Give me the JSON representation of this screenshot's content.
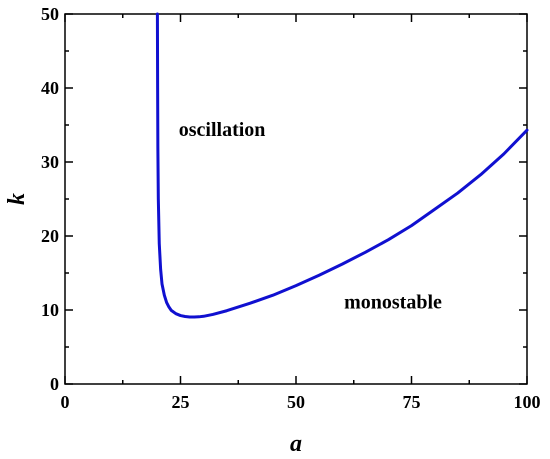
{
  "chart_data": {
    "type": "line",
    "xlabel": "a",
    "ylabel": "k",
    "xlim": [
      0,
      100
    ],
    "ylim": [
      0,
      50
    ],
    "x_ticks": [
      0,
      25,
      50,
      75,
      100
    ],
    "x_tick_labels": [
      "0",
      "25",
      "50",
      "75",
      "100"
    ],
    "x_minor_ticks": [
      12.5,
      37.5,
      62.5,
      87.5
    ],
    "y_ticks": [
      0,
      10,
      20,
      30,
      40,
      50
    ],
    "y_tick_labels": [
      "0",
      "10",
      "20",
      "30",
      "40",
      "50"
    ],
    "y_minor_ticks": [
      5,
      15,
      25,
      35,
      45
    ],
    "grid": false,
    "line_color": "#1010d0",
    "series": [
      {
        "x": [
          20.0,
          20.05,
          20.1,
          20.2,
          20.4,
          20.7,
          21.0,
          21.5,
          22.0,
          22.5,
          23.0,
          24.0,
          25.0,
          26.0,
          27.0,
          28.0,
          29.0,
          30.0,
          32.0,
          35.0,
          40.0,
          45.0,
          50.0,
          55.0,
          60.0,
          65.0,
          70.0,
          75.0,
          80.0,
          85.0,
          90.0,
          95.0,
          100.0
        ],
        "y": [
          50.0,
          40.0,
          32.0,
          25.0,
          19.0,
          15.5,
          13.5,
          12.0,
          11.0,
          10.4,
          9.95,
          9.5,
          9.25,
          9.12,
          9.06,
          9.05,
          9.08,
          9.15,
          9.4,
          9.9,
          10.9,
          12.0,
          13.3,
          14.7,
          16.2,
          17.8,
          19.5,
          21.4,
          23.6,
          25.8,
          28.3,
          31.1,
          34.3
        ]
      }
    ],
    "annotations": [
      {
        "text": "oscillation",
        "x": 34,
        "y": 33.5
      },
      {
        "text": "monostable",
        "x": 71,
        "y": 10.2
      }
    ]
  }
}
